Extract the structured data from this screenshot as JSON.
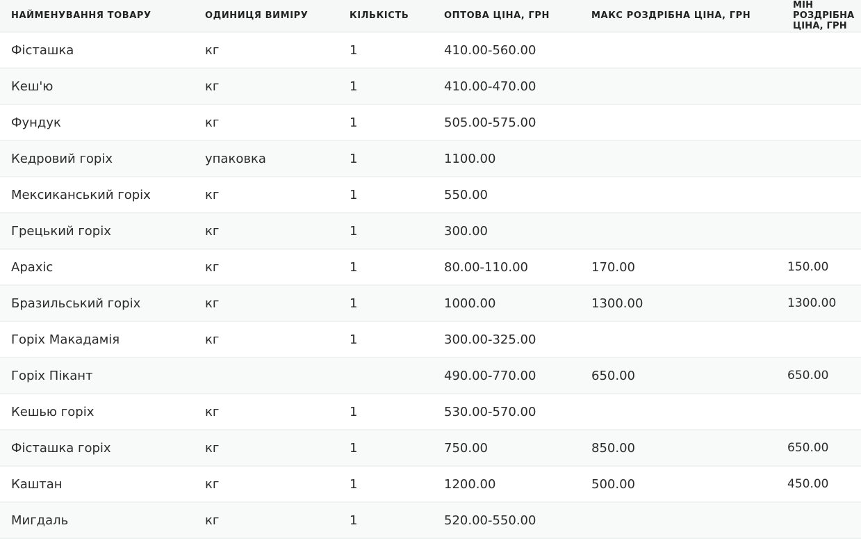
{
  "table": {
    "headers": [
      "НАЙМЕНУВАННЯ ТОВАРУ",
      "ОДИНИЦЯ ВИМІРУ",
      "КІЛЬКІСТЬ",
      "ОПТОВА ЦІНА, ГРН",
      "МАКС РОЗДРІБНА ЦІНА, ГРН",
      "МІН РОЗДРІБНА ЦІНА, ГРН"
    ],
    "rows": [
      [
        "Фісташка",
        "кг",
        "1",
        "410.00-560.00",
        "",
        ""
      ],
      [
        "Кеш'ю",
        "кг",
        "1",
        "410.00-470.00",
        "",
        ""
      ],
      [
        "Фундук",
        "кг",
        "1",
        "505.00-575.00",
        "",
        ""
      ],
      [
        "Кедровий горіх",
        "упаковка",
        "1",
        "1100.00",
        "",
        ""
      ],
      [
        "Мексиканський горіх",
        "кг",
        "1",
        "550.00",
        "",
        ""
      ],
      [
        "Грецький горіх",
        "кг",
        "1",
        "300.00",
        "",
        ""
      ],
      [
        "Арахіс",
        "кг",
        "1",
        "80.00-110.00",
        "170.00",
        "150.00"
      ],
      [
        "Бразильський горіх",
        "кг",
        "1",
        "1000.00",
        "1300.00",
        "1300.00"
      ],
      [
        "Горіх Макадамія",
        "кг",
        "1",
        "300.00-325.00",
        "",
        ""
      ],
      [
        "Горіх Пікант",
        "",
        "",
        "490.00-770.00",
        "650.00",
        "650.00"
      ],
      [
        "Кешью горіх",
        "кг",
        "1",
        "530.00-570.00",
        "",
        ""
      ],
      [
        "Фісташка горіх",
        "кг",
        "1",
        "750.00",
        "850.00",
        "650.00"
      ],
      [
        "Каштан",
        "кг",
        "1",
        "1200.00",
        "500.00",
        "450.00"
      ],
      [
        "Мигдаль",
        "кг",
        "1",
        "520.00-550.00",
        "",
        ""
      ]
    ]
  }
}
